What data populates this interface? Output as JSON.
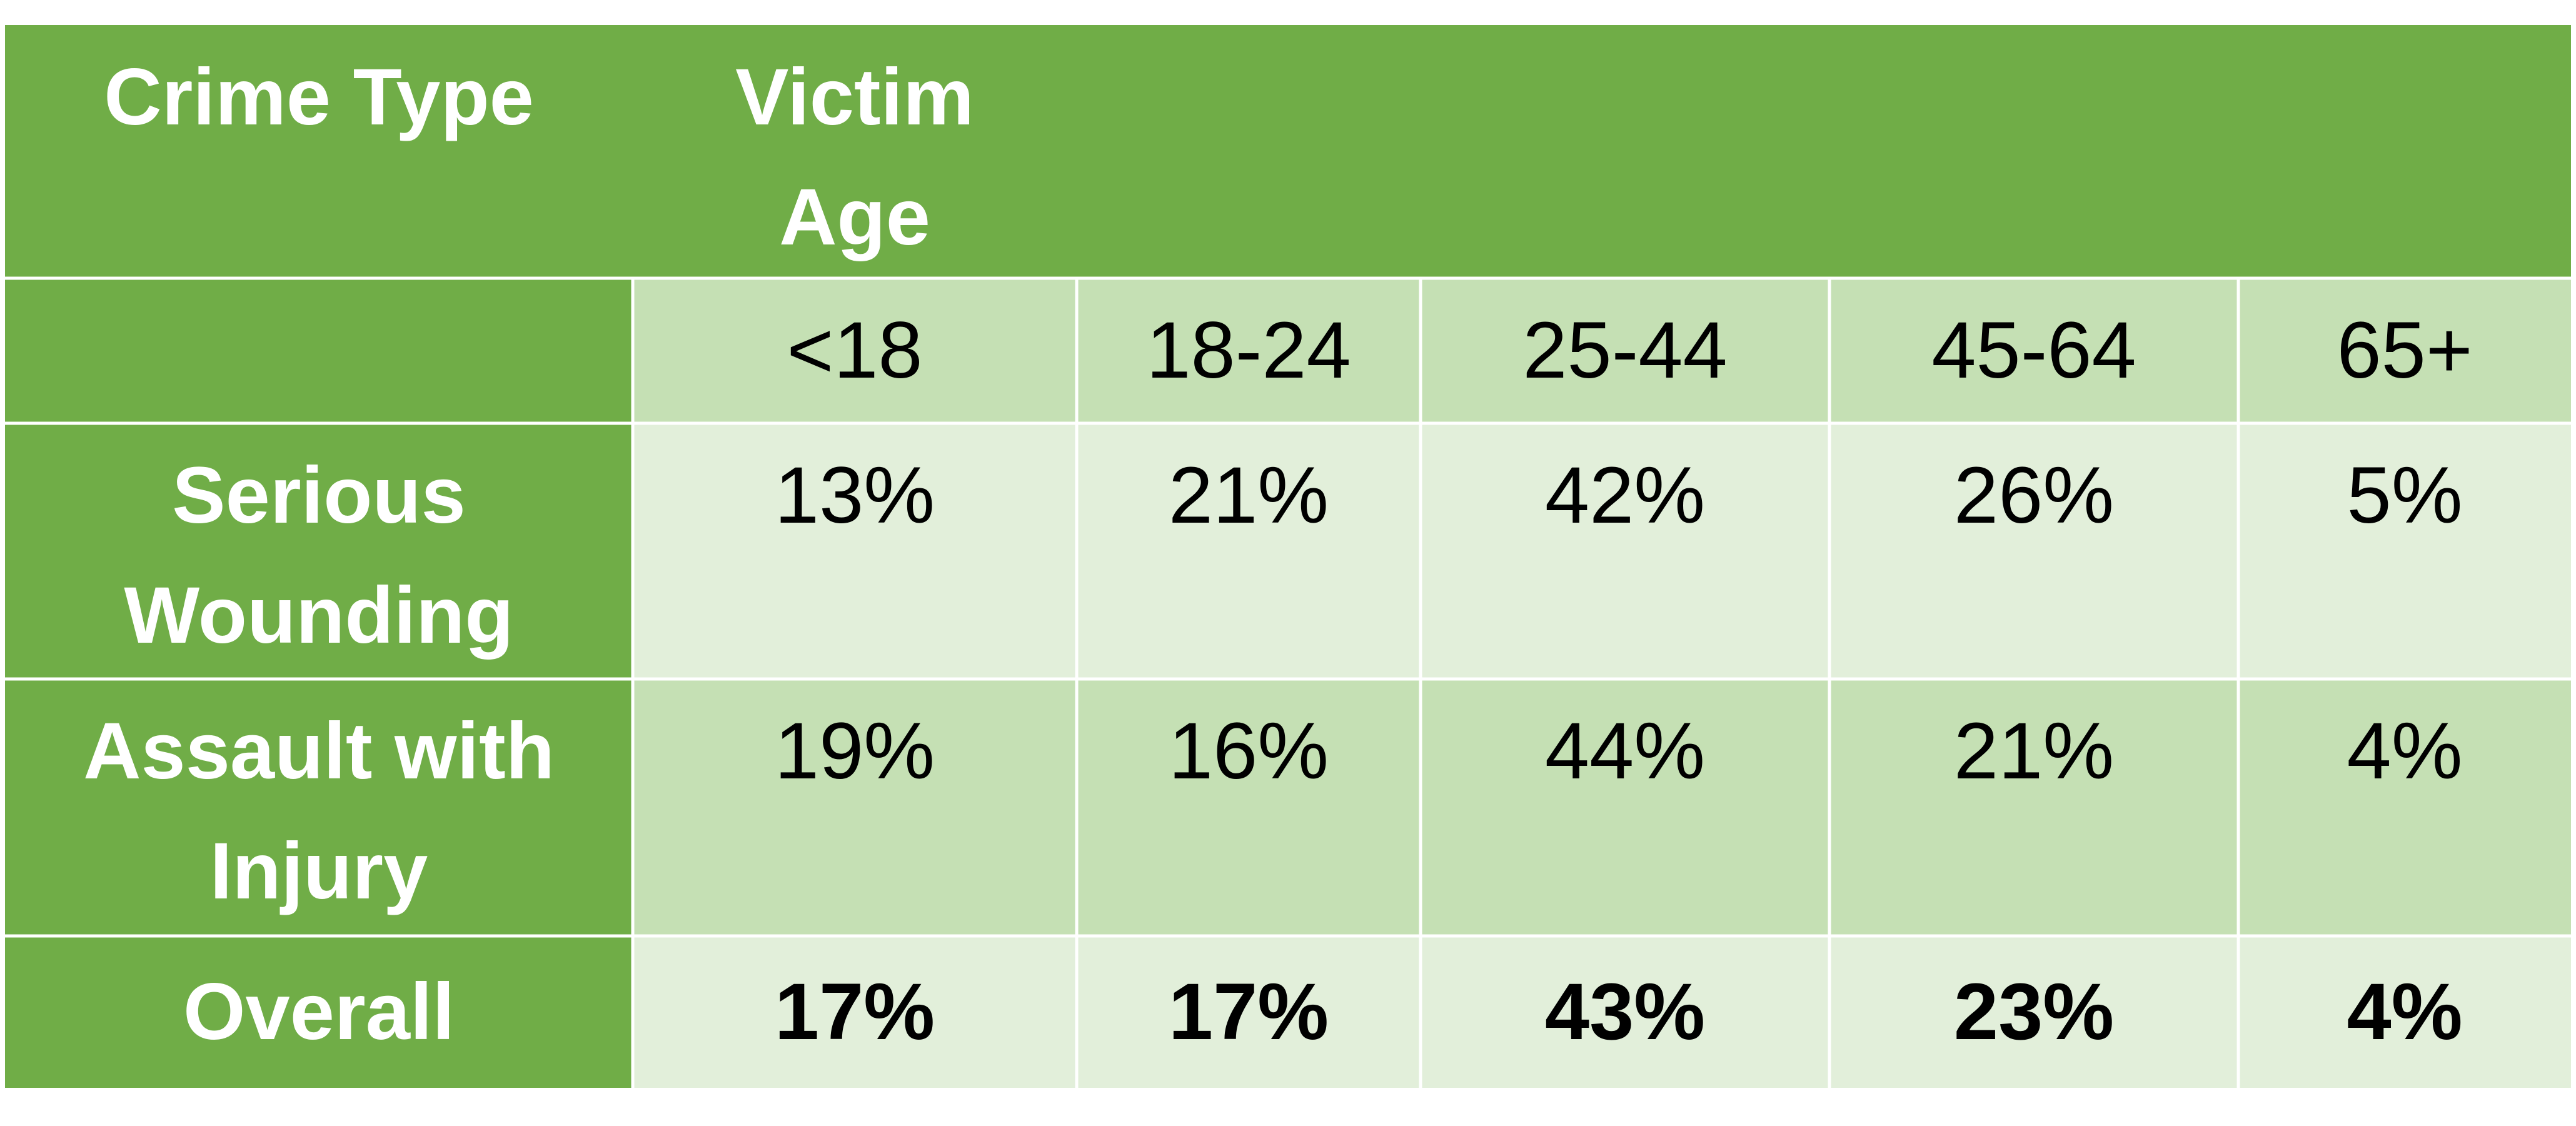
{
  "chart_data": {
    "type": "table",
    "header": {
      "crime_type": "Crime Type",
      "victim_age": "Victim Age"
    },
    "age_groups": [
      "<18",
      "18-24",
      "25-44",
      "45-64",
      "65+"
    ],
    "rows": [
      {
        "label": "Serious Wounding",
        "values": [
          "13%",
          "21%",
          "42%",
          "26%",
          "5%"
        ],
        "bold": false
      },
      {
        "label": "Assault with Injury",
        "values": [
          "19%",
          "16%",
          "44%",
          "21%",
          "4%"
        ],
        "bold": false
      },
      {
        "label": "Overall",
        "values": [
          "17%",
          "17%",
          "43%",
          "23%",
          "4%"
        ],
        "bold": true
      }
    ],
    "colors": {
      "header": "#70ad47",
      "band_dark": "#c5e0b4",
      "band_light": "#e2efda",
      "grid": "#ffffff"
    }
  }
}
